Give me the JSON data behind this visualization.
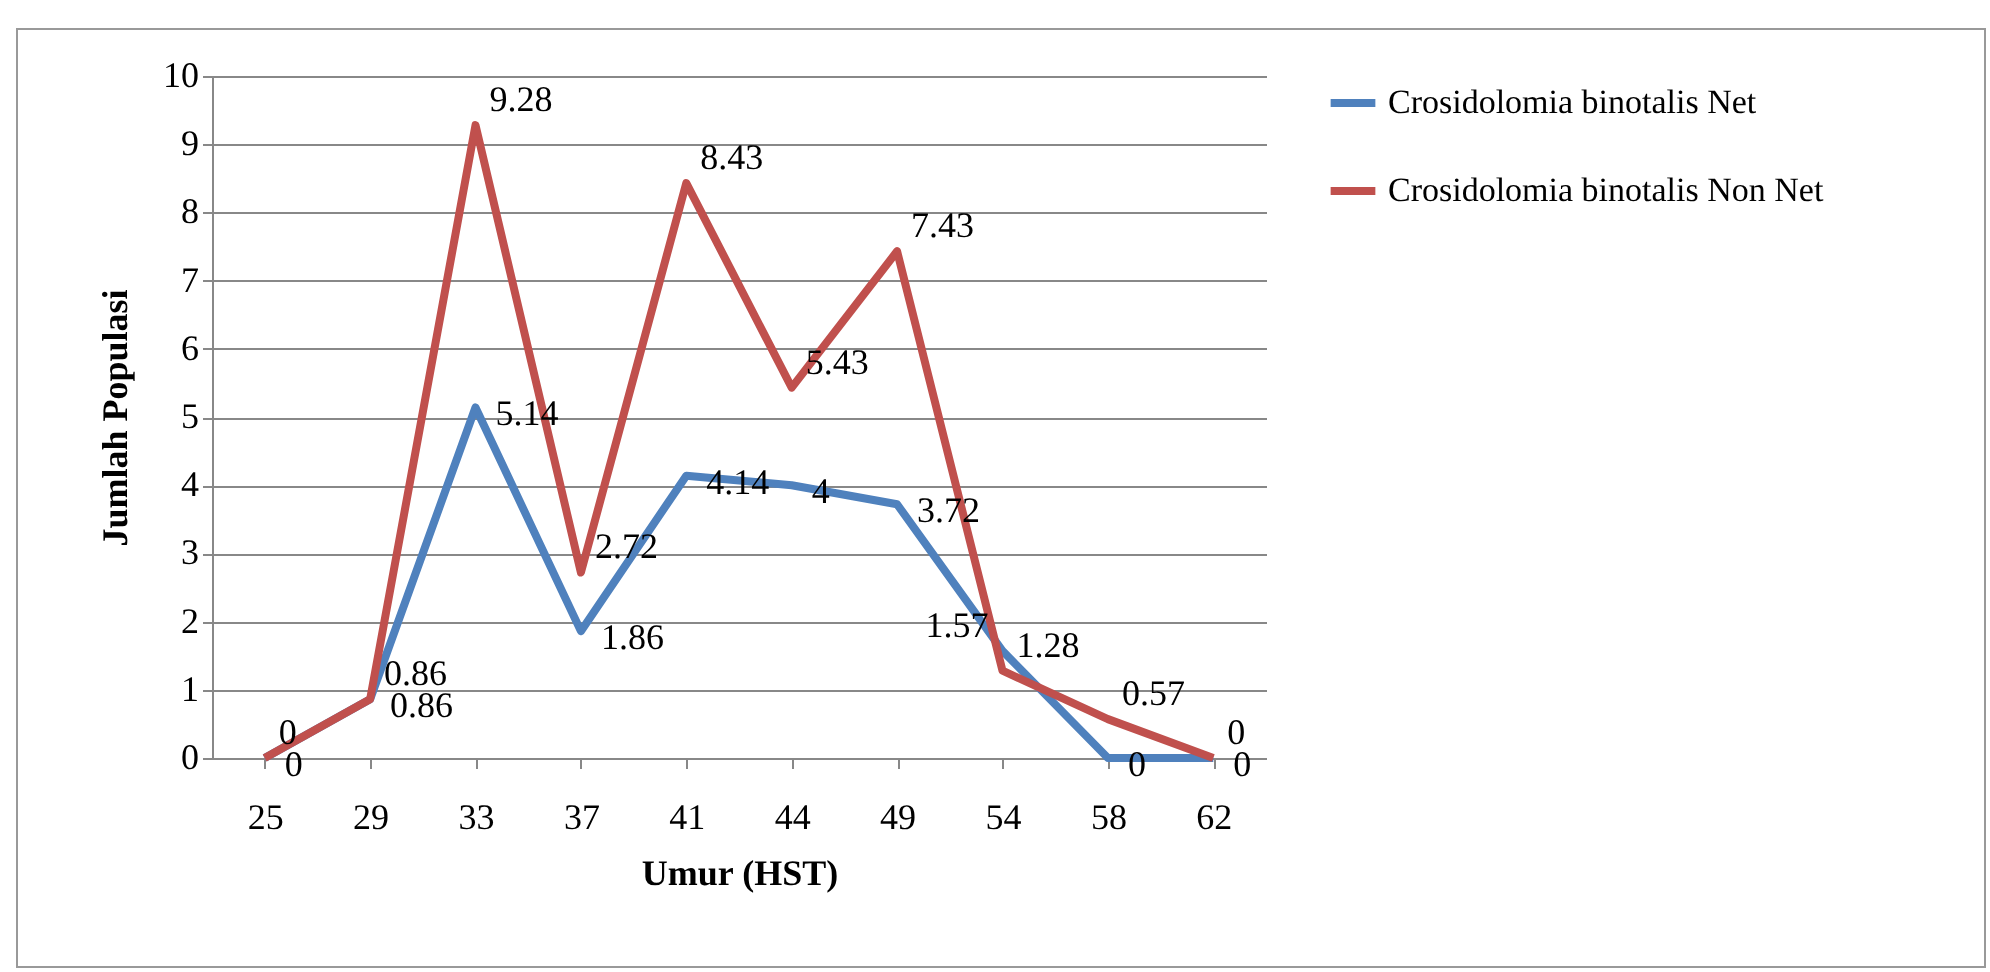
{
  "chart_data": {
    "type": "line",
    "xlabel": "Umur (HST)",
    "ylabel": "Jumlah Populasi",
    "categories": [
      "25",
      "29",
      "33",
      "37",
      "41",
      "44",
      "49",
      "54",
      "58",
      "62"
    ],
    "series": [
      {
        "name": "Crosidolomia binotalis Net",
        "color": "#4f81bd",
        "values": [
          0,
          0.86,
          5.14,
          1.86,
          4.14,
          4,
          3.72,
          1.57,
          0,
          0
        ]
      },
      {
        "name": "Crosidolomia binotalis Non Net",
        "color": "#c0504d",
        "values": [
          0,
          0.86,
          9.28,
          2.72,
          8.43,
          5.43,
          7.43,
          1.28,
          0.57,
          0
        ]
      }
    ],
    "ylim": [
      0,
      10
    ],
    "yticks": [
      0,
      1,
      2,
      3,
      4,
      5,
      6,
      7,
      8,
      9,
      10
    ],
    "grid": "y",
    "legend": "right",
    "data_labels": true,
    "marker": "none",
    "line_style": "solid"
  }
}
